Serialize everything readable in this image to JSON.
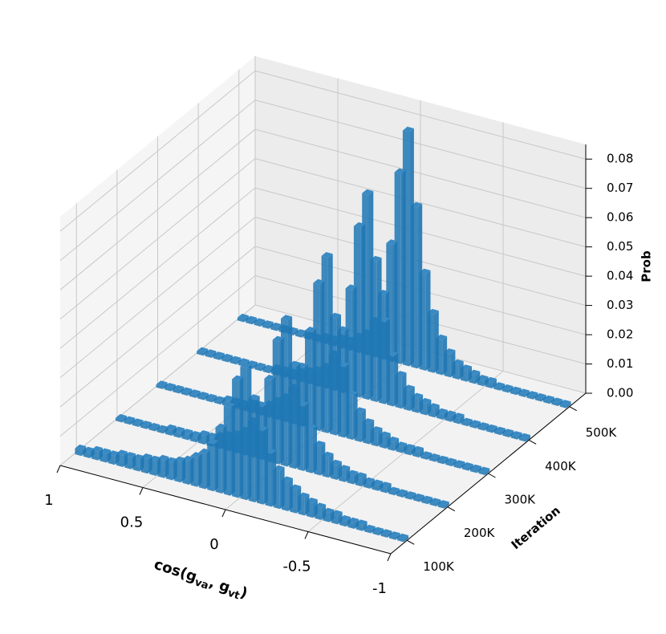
{
  "chart_data": {
    "type": "bar3d",
    "xlabel_parts": [
      "cos(g",
      "va",
      ", g",
      "vt",
      ")"
    ],
    "ylabel": "Iteration",
    "zlabel": "Prob",
    "x": [
      -0.975,
      -0.925,
      -0.875,
      -0.825,
      -0.775,
      -0.725,
      -0.675,
      -0.625,
      -0.575,
      -0.525,
      -0.475,
      -0.425,
      -0.375,
      -0.325,
      -0.275,
      -0.225,
      -0.175,
      -0.125,
      -0.075,
      -0.025,
      0.025,
      0.075,
      0.125,
      0.175,
      0.225,
      0.275,
      0.325,
      0.375,
      0.425,
      0.475,
      0.525,
      0.575,
      0.625,
      0.675,
      0.725,
      0.775,
      0.825,
      0.875,
      0.925,
      0.975
    ],
    "series": [
      {
        "iteration": 100000,
        "color": "#1f77b4",
        "values": [
          0.001,
          0.001,
          0.001,
          0.001,
          0.001,
          0.002,
          0.002,
          0.002,
          0.003,
          0.003,
          0.004,
          0.005,
          0.006,
          0.008,
          0.01,
          0.013,
          0.018,
          0.025,
          0.035,
          0.045,
          0.04,
          0.03,
          0.022,
          0.016,
          0.012,
          0.01,
          0.008,
          0.007,
          0.006,
          0.006,
          0.005,
          0.005,
          0.004,
          0.004,
          0.004,
          0.003,
          0.003,
          0.003,
          0.002,
          0.002
        ]
      },
      {
        "iteration": 200000,
        "color": "#1f77b4",
        "values": [
          0.001,
          0.001,
          0.001,
          0.001,
          0.001,
          0.001,
          0.001,
          0.002,
          0.002,
          0.002,
          0.003,
          0.003,
          0.004,
          0.005,
          0.007,
          0.01,
          0.015,
          0.022,
          0.035,
          0.05,
          0.042,
          0.028,
          0.018,
          0.012,
          0.008,
          0.006,
          0.005,
          0.004,
          0.003,
          0.003,
          0.002,
          0.002,
          0.002,
          0.002,
          0.001,
          0.001,
          0.001,
          0.001,
          0.001,
          0.001
        ]
      },
      {
        "iteration": 300000,
        "color": "#1f77b4",
        "values": [
          0.001,
          0.001,
          0.001,
          0.001,
          0.001,
          0.001,
          0.001,
          0.001,
          0.002,
          0.002,
          0.002,
          0.003,
          0.004,
          0.005,
          0.007,
          0.01,
          0.015,
          0.024,
          0.04,
          0.06,
          0.05,
          0.033,
          0.02,
          0.012,
          0.008,
          0.006,
          0.004,
          0.003,
          0.003,
          0.002,
          0.002,
          0.002,
          0.001,
          0.001,
          0.001,
          0.001,
          0.001,
          0.001,
          0.001,
          0.001
        ]
      },
      {
        "iteration": 400000,
        "color": "#1f77b4",
        "values": [
          0.001,
          0.001,
          0.001,
          0.001,
          0.001,
          0.001,
          0.001,
          0.001,
          0.002,
          0.002,
          0.002,
          0.003,
          0.004,
          0.005,
          0.007,
          0.011,
          0.017,
          0.028,
          0.048,
          0.07,
          0.058,
          0.036,
          0.021,
          0.012,
          0.007,
          0.005,
          0.004,
          0.003,
          0.002,
          0.002,
          0.002,
          0.001,
          0.001,
          0.001,
          0.001,
          0.001,
          0.001,
          0.001,
          0.001,
          0.001
        ]
      },
      {
        "iteration": 500000,
        "color": "#1f77b4",
        "values": [
          0.001,
          0.001,
          0.001,
          0.001,
          0.001,
          0.001,
          0.001,
          0.001,
          0.001,
          0.002,
          0.002,
          0.003,
          0.004,
          0.005,
          0.008,
          0.012,
          0.02,
          0.033,
          0.055,
          0.08,
          0.065,
          0.04,
          0.022,
          0.012,
          0.007,
          0.005,
          0.003,
          0.003,
          0.002,
          0.002,
          0.001,
          0.001,
          0.001,
          0.001,
          0.001,
          0.001,
          0.001,
          0.001,
          0.001,
          0.001
        ]
      }
    ],
    "xlim": [
      1,
      -1
    ],
    "xticks": [
      1,
      0.5,
      0,
      -0.5,
      -1
    ],
    "ylim": [
      60000,
      540000
    ],
    "yticks": [
      {
        "value": 100000,
        "label": "100K"
      },
      {
        "value": 200000,
        "label": "200K"
      },
      {
        "value": 300000,
        "label": "300K"
      },
      {
        "value": 400000,
        "label": "400K"
      },
      {
        "value": 500000,
        "label": "500K"
      }
    ],
    "zlim": [
      0,
      0.085
    ],
    "zticks": [
      {
        "value": 0,
        "label": "0.00"
      },
      {
        "value": 0.01,
        "label": "0.01"
      },
      {
        "value": 0.02,
        "label": "0.02"
      },
      {
        "value": 0.03,
        "label": "0.03"
      },
      {
        "value": 0.04,
        "label": "0.04"
      },
      {
        "value": 0.05,
        "label": "0.05"
      },
      {
        "value": 0.06,
        "label": "0.06"
      },
      {
        "value": 0.07,
        "label": "0.07"
      },
      {
        "value": 0.08,
        "label": "0.08"
      }
    ],
    "grid": true
  }
}
